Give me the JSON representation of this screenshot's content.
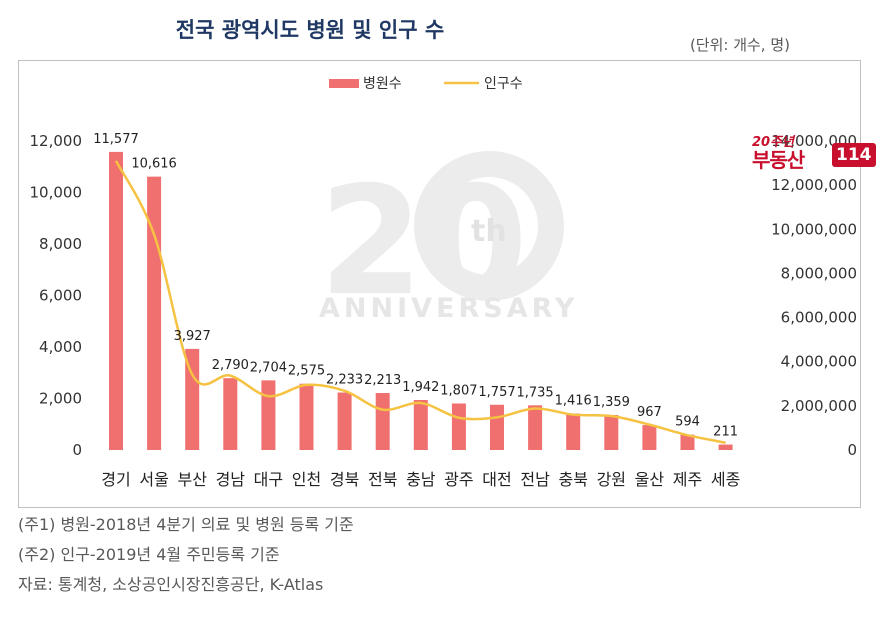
{
  "header": {
    "title": "전국 광역시도 병원 및 인구 수",
    "unit": "(단위: 개수, 명)"
  },
  "logo": {
    "top": "20주년",
    "main": "부동산",
    "num": "114"
  },
  "watermark": {
    "number": "20",
    "suffix": "th",
    "word": "ANNIVERSARY"
  },
  "notes": [
    "(주1) 병원-2018년 4분기 의료 및 병원 등록 기준",
    "(주2) 인구-2019년 4월 주민등록 기준",
    "자료: 통계청, 소상공인시장진흥공단, K-Atlas"
  ],
  "colors": {
    "bar": "#f07070",
    "line": "#f5c242",
    "title": "#1f3864"
  },
  "chart_data": {
    "type": "bar",
    "categories": [
      "경기",
      "서울",
      "부산",
      "경남",
      "대구",
      "인천",
      "경북",
      "전북",
      "충남",
      "광주",
      "대전",
      "전남",
      "충북",
      "강원",
      "울산",
      "제주",
      "세종"
    ],
    "series": [
      {
        "name": "병원수",
        "type": "bar",
        "axis": "left",
        "values": [
          11577,
          10616,
          3927,
          2790,
          2704,
          2575,
          2233,
          2213,
          1942,
          1807,
          1757,
          1735,
          1416,
          1359,
          967,
          594,
          211
        ],
        "labels": [
          "11,577",
          "10,616",
          "3,927",
          "2,790",
          "2,704",
          "2,575",
          "2,233",
          "2,213",
          "1,942",
          "1,807",
          "1,757",
          "1,735",
          "1,416",
          "1,359",
          "967",
          "594",
          "211"
        ]
      },
      {
        "name": "인구수",
        "type": "line",
        "axis": "right",
        "values": [
          13100000,
          9760000,
          3420000,
          3370000,
          2440000,
          2950000,
          2680000,
          1830000,
          2130000,
          1460000,
          1480000,
          1880000,
          1600000,
          1540000,
          1150000,
          670000,
          330000
        ]
      }
    ],
    "y_left": {
      "min": 0,
      "max": 12000,
      "ticks": [
        "0",
        "2,000",
        "4,000",
        "6,000",
        "8,000",
        "10,000",
        "12,000"
      ]
    },
    "y_right": {
      "min": 0,
      "max": 14000000,
      "ticks": [
        "0",
        "2,000,000",
        "4,000,000",
        "6,000,000",
        "8,000,000",
        "10,000,000",
        "12,000,000",
        "14,000,000"
      ]
    },
    "legend": {
      "position": "top-center",
      "bar_label": "병원수",
      "line_label": "인구수"
    },
    "grid": false
  }
}
